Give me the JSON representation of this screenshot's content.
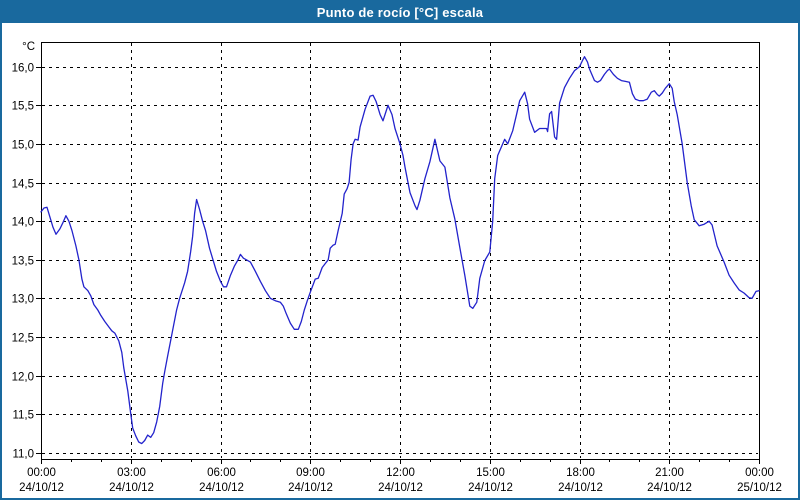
{
  "window": {
    "title": "Punto de rocío [°C] escala",
    "title_bar_color": "#19699e",
    "border_color": "#19699e",
    "background": "#ffffff"
  },
  "chart_data": {
    "type": "line",
    "title": "Punto de rocío [°C] escala",
    "ylabel": "°C",
    "xlabel": "",
    "grid": true,
    "legend": "none",
    "line_color": "#2323cc",
    "grid_color": "#000000",
    "ylim": [
      10.92,
      16.32
    ],
    "xlim_minutes": [
      0,
      1440
    ],
    "y_ticks": [
      {
        "value": 16.0,
        "label": "16,0"
      },
      {
        "value": 15.5,
        "label": "15,5"
      },
      {
        "value": 15.0,
        "label": "15,0"
      },
      {
        "value": 14.5,
        "label": "14,5"
      },
      {
        "value": 14.0,
        "label": "14,0"
      },
      {
        "value": 13.5,
        "label": "13,5"
      },
      {
        "value": 13.0,
        "label": "13,0"
      },
      {
        "value": 12.5,
        "label": "12,5"
      },
      {
        "value": 12.0,
        "label": "12,0"
      },
      {
        "value": 11.5,
        "label": "11,5"
      },
      {
        "value": 11.0,
        "label": "11,0"
      }
    ],
    "x_ticks": [
      {
        "minutes": 0,
        "time": "00:00",
        "date": "24/10/12"
      },
      {
        "minutes": 180,
        "time": "03:00",
        "date": "24/10/12"
      },
      {
        "minutes": 360,
        "time": "06:00",
        "date": "24/10/12"
      },
      {
        "minutes": 540,
        "time": "09:00",
        "date": "24/10/12"
      },
      {
        "minutes": 720,
        "time": "12:00",
        "date": "24/10/12"
      },
      {
        "minutes": 900,
        "time": "15:00",
        "date": "24/10/12"
      },
      {
        "minutes": 1080,
        "time": "18:00",
        "date": "24/10/12"
      },
      {
        "minutes": 1260,
        "time": "21:00",
        "date": "24/10/12"
      },
      {
        "minutes": 1440,
        "time": "00:00",
        "date": "25/10/12"
      }
    ],
    "minor_x_tick_minutes": 60,
    "series": [
      {
        "name": "Punto de rocío",
        "color": "#2323cc",
        "points": [
          [
            0,
            14.12
          ],
          [
            6,
            14.17
          ],
          [
            12,
            14.18
          ],
          [
            18,
            14.05
          ],
          [
            24,
            13.92
          ],
          [
            30,
            13.83
          ],
          [
            38,
            13.9
          ],
          [
            44,
            13.98
          ],
          [
            50,
            14.07
          ],
          [
            56,
            14.0
          ],
          [
            62,
            13.88
          ],
          [
            70,
            13.68
          ],
          [
            76,
            13.5
          ],
          [
            82,
            13.25
          ],
          [
            86,
            13.15
          ],
          [
            94,
            13.1
          ],
          [
            100,
            13.03
          ],
          [
            106,
            12.92
          ],
          [
            114,
            12.85
          ],
          [
            120,
            12.78
          ],
          [
            128,
            12.7
          ],
          [
            136,
            12.63
          ],
          [
            142,
            12.58
          ],
          [
            148,
            12.55
          ],
          [
            156,
            12.45
          ],
          [
            162,
            12.3
          ],
          [
            166,
            12.1
          ],
          [
            170,
            11.95
          ],
          [
            174,
            11.8
          ],
          [
            180,
            11.5
          ],
          [
            184,
            11.32
          ],
          [
            190,
            11.22
          ],
          [
            196,
            11.14
          ],
          [
            202,
            11.12
          ],
          [
            208,
            11.16
          ],
          [
            214,
            11.23
          ],
          [
            220,
            11.2
          ],
          [
            226,
            11.26
          ],
          [
            232,
            11.4
          ],
          [
            238,
            11.6
          ],
          [
            244,
            11.9
          ],
          [
            248,
            12.05
          ],
          [
            254,
            12.25
          ],
          [
            260,
            12.45
          ],
          [
            266,
            12.65
          ],
          [
            272,
            12.85
          ],
          [
            278,
            13.0
          ],
          [
            288,
            13.2
          ],
          [
            294,
            13.35
          ],
          [
            300,
            13.6
          ],
          [
            304,
            13.8
          ],
          [
            308,
            14.1
          ],
          [
            312,
            14.28
          ],
          [
            318,
            14.15
          ],
          [
            324,
            14.0
          ],
          [
            330,
            13.88
          ],
          [
            338,
            13.65
          ],
          [
            345,
            13.5
          ],
          [
            352,
            13.35
          ],
          [
            360,
            13.22
          ],
          [
            366,
            13.15
          ],
          [
            372,
            13.15
          ],
          [
            380,
            13.3
          ],
          [
            388,
            13.42
          ],
          [
            395,
            13.5
          ],
          [
            400,
            13.57
          ],
          [
            406,
            13.52
          ],
          [
            412,
            13.5
          ],
          [
            420,
            13.47
          ],
          [
            430,
            13.35
          ],
          [
            440,
            13.22
          ],
          [
            450,
            13.1
          ],
          [
            460,
            13.0
          ],
          [
            470,
            12.97
          ],
          [
            480,
            12.95
          ],
          [
            486,
            12.9
          ],
          [
            492,
            12.8
          ],
          [
            500,
            12.68
          ],
          [
            508,
            12.6
          ],
          [
            516,
            12.6
          ],
          [
            522,
            12.7
          ],
          [
            528,
            12.85
          ],
          [
            534,
            12.97
          ],
          [
            540,
            13.08
          ],
          [
            550,
            13.25
          ],
          [
            556,
            13.26
          ],
          [
            564,
            13.4
          ],
          [
            570,
            13.45
          ],
          [
            576,
            13.5
          ],
          [
            580,
            13.65
          ],
          [
            586,
            13.69
          ],
          [
            590,
            13.7
          ],
          [
            596,
            13.88
          ],
          [
            604,
            14.1
          ],
          [
            608,
            14.35
          ],
          [
            614,
            14.42
          ],
          [
            618,
            14.5
          ],
          [
            622,
            14.8
          ],
          [
            626,
            15.0
          ],
          [
            630,
            15.06
          ],
          [
            636,
            15.05
          ],
          [
            640,
            15.22
          ],
          [
            650,
            15.45
          ],
          [
            660,
            15.62
          ],
          [
            666,
            15.63
          ],
          [
            672,
            15.55
          ],
          [
            680,
            15.38
          ],
          [
            686,
            15.3
          ],
          [
            692,
            15.42
          ],
          [
            696,
            15.5
          ],
          [
            704,
            15.38
          ],
          [
            710,
            15.2
          ],
          [
            720,
            15.0
          ],
          [
            726,
            14.85
          ],
          [
            730,
            14.7
          ],
          [
            736,
            14.5
          ],
          [
            740,
            14.37
          ],
          [
            750,
            14.2
          ],
          [
            754,
            14.15
          ],
          [
            760,
            14.27
          ],
          [
            770,
            14.55
          ],
          [
            780,
            14.77
          ],
          [
            790,
            15.06
          ],
          [
            800,
            14.78
          ],
          [
            810,
            14.7
          ],
          [
            820,
            14.3
          ],
          [
            830,
            14.03
          ],
          [
            840,
            13.66
          ],
          [
            850,
            13.3
          ],
          [
            860,
            12.9
          ],
          [
            866,
            12.87
          ],
          [
            874,
            12.95
          ],
          [
            880,
            13.26
          ],
          [
            890,
            13.49
          ],
          [
            900,
            13.6
          ],
          [
            906,
            14.0
          ],
          [
            910,
            14.55
          ],
          [
            916,
            14.85
          ],
          [
            926,
            15.0
          ],
          [
            930,
            15.06
          ],
          [
            936,
            15.0
          ],
          [
            946,
            15.17
          ],
          [
            954,
            15.39
          ],
          [
            960,
            15.56
          ],
          [
            970,
            15.67
          ],
          [
            976,
            15.52
          ],
          [
            980,
            15.32
          ],
          [
            990,
            15.15
          ],
          [
            1000,
            15.2
          ],
          [
            1014,
            15.2
          ],
          [
            1016,
            15.16
          ],
          [
            1020,
            15.39
          ],
          [
            1024,
            15.42
          ],
          [
            1030,
            15.09
          ],
          [
            1034,
            15.06
          ],
          [
            1040,
            15.53
          ],
          [
            1050,
            15.73
          ],
          [
            1060,
            15.85
          ],
          [
            1070,
            15.95
          ],
          [
            1080,
            16.0
          ],
          [
            1086,
            16.08
          ],
          [
            1090,
            16.13
          ],
          [
            1096,
            16.06
          ],
          [
            1100,
            15.97
          ],
          [
            1106,
            15.88
          ],
          [
            1110,
            15.82
          ],
          [
            1116,
            15.8
          ],
          [
            1122,
            15.82
          ],
          [
            1130,
            15.9
          ],
          [
            1136,
            15.95
          ],
          [
            1140,
            15.97
          ],
          [
            1148,
            15.9
          ],
          [
            1156,
            15.85
          ],
          [
            1164,
            15.82
          ],
          [
            1172,
            15.81
          ],
          [
            1180,
            15.8
          ],
          [
            1186,
            15.65
          ],
          [
            1192,
            15.58
          ],
          [
            1200,
            15.56
          ],
          [
            1208,
            15.56
          ],
          [
            1216,
            15.58
          ],
          [
            1224,
            15.67
          ],
          [
            1230,
            15.69
          ],
          [
            1236,
            15.64
          ],
          [
            1240,
            15.62
          ],
          [
            1246,
            15.66
          ],
          [
            1252,
            15.72
          ],
          [
            1260,
            15.78
          ],
          [
            1266,
            15.72
          ],
          [
            1270,
            15.55
          ],
          [
            1276,
            15.38
          ],
          [
            1286,
            15.0
          ],
          [
            1296,
            14.5
          ],
          [
            1304,
            14.2
          ],
          [
            1310,
            14.02
          ],
          [
            1320,
            13.94
          ],
          [
            1330,
            13.96
          ],
          [
            1340,
            14.0
          ],
          [
            1346,
            13.95
          ],
          [
            1356,
            13.68
          ],
          [
            1360,
            13.62
          ],
          [
            1370,
            13.47
          ],
          [
            1380,
            13.3
          ],
          [
            1390,
            13.2
          ],
          [
            1400,
            13.11
          ],
          [
            1410,
            13.07
          ],
          [
            1420,
            13.01
          ],
          [
            1426,
            13.0
          ],
          [
            1434,
            13.09
          ],
          [
            1440,
            13.1
          ]
        ]
      }
    ]
  }
}
